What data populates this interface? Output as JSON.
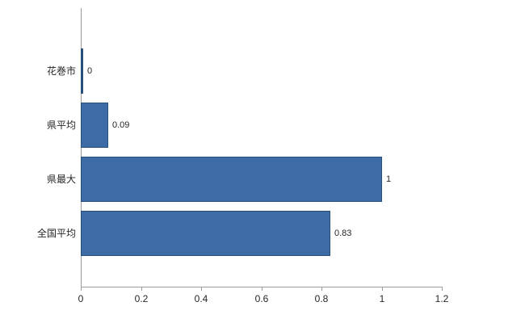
{
  "chart_data": {
    "type": "bar",
    "orientation": "horizontal",
    "categories": [
      "花巻市",
      "県平均",
      "県最大",
      "全国平均"
    ],
    "values": [
      0,
      0.09,
      1,
      0.83
    ],
    "value_labels": [
      "0",
      "0.09",
      "1",
      "0.83"
    ],
    "xlim": [
      0,
      1.2
    ],
    "x_tick_values": [
      0,
      0.2,
      0.4,
      0.6,
      0.8,
      1,
      1.2
    ],
    "x_tick_labels": [
      "0",
      "0.2",
      "0.4",
      "0.6",
      "0.8",
      "1",
      "1.2"
    ],
    "grid": false,
    "legend": "none",
    "title": "",
    "colors": {
      "bar_fill": "#3c6ba5",
      "bar_border": "#27507e",
      "axis_line": "#9b9b9b",
      "text": "#262626",
      "background": "#ffffff"
    }
  }
}
